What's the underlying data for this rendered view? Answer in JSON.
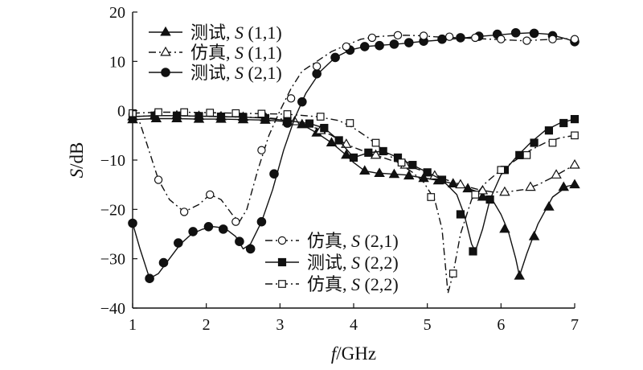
{
  "chart_data": {
    "type": "line",
    "title": "",
    "xlabel_italic": "f",
    "xlabel_rest": "/GHz",
    "ylabel_italic": "S",
    "ylabel_rest": "/dB",
    "xlim": [
      1,
      7
    ],
    "ylim": [
      -40,
      20
    ],
    "x_ticks": [
      1,
      2,
      3,
      4,
      5,
      6,
      7
    ],
    "y_ticks": [
      20,
      10,
      0,
      -10,
      -20,
      -30,
      -40
    ],
    "grid": false,
    "legend_groups": [
      {
        "placement": "top-left",
        "series": [
          0,
          1,
          2
        ]
      },
      {
        "placement": "bottom-center",
        "series": [
          3,
          4,
          5
        ]
      }
    ],
    "series": [
      {
        "name": "测试, S (1,1)",
        "name_prefix": "测试, ",
        "name_italic": "S",
        "name_suffix": " (1,1)",
        "line": "solid",
        "marker": "triangle-filled",
        "x": [
          1.0,
          1.3,
          1.6,
          1.9,
          2.2,
          2.5,
          2.8,
          3.1,
          3.3,
          3.5,
          3.7,
          3.9,
          4.0,
          4.15,
          4.3,
          4.5,
          4.7,
          4.9,
          5.1,
          5.3,
          5.5,
          5.7,
          5.9,
          6.0,
          6.1,
          6.2,
          6.25,
          6.35,
          6.5,
          6.7,
          6.9,
          7.0
        ],
        "y": [
          -1.8,
          -1.6,
          -1.6,
          -1.7,
          -1.7,
          -1.8,
          -1.9,
          -2.2,
          -2.8,
          -4.5,
          -6.5,
          -9.0,
          -10.5,
          -12.2,
          -12.6,
          -12.8,
          -13.0,
          -13.5,
          -14.0,
          -14.6,
          -15.5,
          -16.5,
          -18.5,
          -21.0,
          -24.5,
          -30.0,
          -33.5,
          -29.0,
          -23.0,
          -17.5,
          -15.3,
          -15.0
        ],
        "marker_x": [
          1.0,
          1.32,
          1.6,
          1.9,
          2.2,
          2.5,
          2.8,
          3.1,
          3.3,
          3.5,
          3.7,
          3.9,
          4.15,
          4.35,
          4.55,
          4.75,
          4.95,
          5.15,
          5.35,
          5.55,
          5.75,
          6.05,
          6.25,
          6.45,
          6.65,
          6.85,
          7.0
        ],
        "marker_y": [
          -1.8,
          -1.6,
          -1.6,
          -1.7,
          -1.7,
          -1.8,
          -1.9,
          -2.2,
          -2.8,
          -4.5,
          -6.5,
          -9.0,
          -12.2,
          -12.7,
          -12.9,
          -13.2,
          -13.7,
          -14.2,
          -14.8,
          -15.8,
          -17.5,
          -24.0,
          -33.5,
          -25.5,
          -19.5,
          -15.5,
          -15.0
        ]
      },
      {
        "name": "仿真, S (1,1)",
        "name_prefix": "仿真, ",
        "name_italic": "S",
        "name_suffix": " (1,1)",
        "line": "dashdot",
        "marker": "triangle-open",
        "x": [
          1.0,
          1.3,
          1.6,
          1.9,
          2.2,
          2.5,
          2.8,
          3.1,
          3.3,
          3.5,
          3.7,
          3.9,
          4.1,
          4.3,
          4.5,
          4.7,
          4.9,
          5.1,
          5.3,
          5.5,
          5.7,
          5.9,
          6.1,
          6.3,
          6.5,
          6.7,
          6.9,
          7.0
        ],
        "y": [
          -1.2,
          -1.0,
          -1.0,
          -1.1,
          -1.2,
          -1.3,
          -1.4,
          -1.8,
          -2.6,
          -3.6,
          -5.0,
          -6.8,
          -8.0,
          -9.0,
          -10.0,
          -11.0,
          -12.0,
          -13.2,
          -14.2,
          -15.2,
          -16.0,
          -16.5,
          -16.4,
          -16.0,
          -15.0,
          -13.5,
          -11.8,
          -11.0
        ],
        "marker_x": [
          1.0,
          1.3,
          1.6,
          1.9,
          2.2,
          2.5,
          2.8,
          3.2,
          3.55,
          3.9,
          4.3,
          4.7,
          5.1,
          5.45,
          5.75,
          6.05,
          6.4,
          6.75,
          7.0
        ],
        "marker_y": [
          -1.2,
          -1.0,
          -1.0,
          -1.1,
          -1.2,
          -1.3,
          -1.4,
          -2.2,
          -4.0,
          -6.8,
          -9.0,
          -11.0,
          -13.2,
          -15.0,
          -16.2,
          -16.5,
          -15.5,
          -13.0,
          -11.0
        ]
      },
      {
        "name": "测试, S (2,1)",
        "name_prefix": "测试, ",
        "name_italic": "S",
        "name_suffix": " (2,1)",
        "line": "solid",
        "marker": "circle-filled",
        "x": [
          1.0,
          1.1,
          1.23,
          1.35,
          1.5,
          1.65,
          1.8,
          1.95,
          2.1,
          2.25,
          2.4,
          2.5,
          2.6,
          2.75,
          2.9,
          3.05,
          3.2,
          3.35,
          3.55,
          3.75,
          3.95,
          4.15,
          4.4,
          4.65,
          4.9,
          5.15,
          5.4,
          5.65,
          5.9,
          6.15,
          6.4,
          6.65,
          6.9,
          7.0
        ],
        "y": [
          -22.8,
          -28.0,
          -34.0,
          -33.0,
          -30.0,
          -27.0,
          -25.0,
          -24.0,
          -23.5,
          -23.8,
          -25.5,
          -28.0,
          -27.0,
          -22.5,
          -16.0,
          -8.0,
          -1.5,
          3.5,
          8.0,
          10.8,
          12.3,
          13.0,
          13.3,
          13.6,
          14.0,
          14.3,
          14.6,
          15.0,
          15.3,
          15.6,
          15.8,
          15.5,
          14.5,
          14.0
        ],
        "marker_x": [
          1.0,
          1.23,
          1.42,
          1.62,
          1.82,
          2.03,
          2.23,
          2.45,
          2.6,
          2.75,
          2.92,
          3.1,
          3.3,
          3.5,
          3.75,
          3.95,
          4.15,
          4.35,
          4.55,
          4.75,
          4.95,
          5.2,
          5.45,
          5.7,
          5.95,
          6.2,
          6.45,
          6.7,
          7.0
        ],
        "marker_y": [
          -22.8,
          -34.0,
          -30.8,
          -26.8,
          -24.5,
          -23.5,
          -24.0,
          -26.5,
          -28.0,
          -22.5,
          -12.8,
          -2.5,
          1.8,
          7.5,
          10.8,
          12.3,
          13.0,
          13.2,
          13.5,
          13.8,
          14.1,
          14.5,
          14.8,
          15.1,
          15.5,
          15.8,
          15.7,
          15.2,
          14.0
        ]
      },
      {
        "name": "仿真, S (2,1)",
        "name_prefix": "仿真, ",
        "name_italic": "S",
        "name_suffix": " (2,1)",
        "line": "dashdot",
        "marker": "circle-open",
        "x": [
          1.0,
          1.1,
          1.2,
          1.35,
          1.5,
          1.7,
          1.9,
          2.05,
          2.2,
          2.35,
          2.45,
          2.55,
          2.7,
          2.85,
          3.0,
          3.15,
          3.3,
          3.5,
          3.7,
          3.9,
          4.1,
          4.3,
          4.5,
          4.7,
          4.9,
          5.1,
          5.4,
          5.7,
          6.0,
          6.3,
          6.6,
          6.9,
          7.0
        ],
        "y": [
          -0.8,
          -2.5,
          -7.0,
          -14.0,
          -18.0,
          -20.5,
          -19.0,
          -17.0,
          -18.0,
          -21.0,
          -22.5,
          -20.0,
          -12.0,
          -5.0,
          0.0,
          4.5,
          8.0,
          10.0,
          12.0,
          13.3,
          14.5,
          15.0,
          15.2,
          15.3,
          15.2,
          15.0,
          14.8,
          14.6,
          14.4,
          14.2,
          14.4,
          14.6,
          14.5
        ],
        "marker_x": [
          1.0,
          1.35,
          1.7,
          2.05,
          2.4,
          2.75,
          3.15,
          3.5,
          3.9,
          4.25,
          4.6,
          4.95,
          5.3,
          5.65,
          6.0,
          6.35,
          6.7,
          7.0
        ],
        "marker_y": [
          -0.8,
          -14.0,
          -20.5,
          -17.0,
          -22.5,
          -8.0,
          2.5,
          9.0,
          13.0,
          14.8,
          15.3,
          15.2,
          15.0,
          14.8,
          14.5,
          14.2,
          14.5,
          14.5
        ]
      },
      {
        "name": "测试, S (2,2)",
        "name_prefix": "测试, ",
        "name_italic": "S",
        "name_suffix": " (2,2)",
        "line": "solid",
        "marker": "square-filled",
        "x": [
          1.0,
          1.3,
          1.6,
          1.9,
          2.2,
          2.5,
          2.8,
          3.1,
          3.4,
          3.6,
          3.8,
          4.0,
          4.2,
          4.4,
          4.6,
          4.8,
          5.0,
          5.2,
          5.4,
          5.5,
          5.6,
          5.65,
          5.75,
          5.85,
          6.0,
          6.2,
          6.4,
          6.6,
          6.8,
          7.0
        ],
        "y": [
          -1.2,
          -1.0,
          -1.0,
          -1.1,
          -1.2,
          -1.3,
          -1.5,
          -2.0,
          -2.6,
          -3.5,
          -6.0,
          -9.5,
          -8.5,
          -8.2,
          -9.5,
          -11.0,
          -12.5,
          -14.0,
          -17.0,
          -21.0,
          -27.0,
          -28.5,
          -24.0,
          -18.0,
          -13.0,
          -9.5,
          -6.5,
          -4.0,
          -2.5,
          -1.7
        ],
        "marker_x": [
          1.0,
          1.3,
          1.6,
          1.9,
          2.2,
          2.5,
          2.8,
          3.1,
          3.4,
          3.6,
          3.8,
          4.0,
          4.2,
          4.4,
          4.6,
          4.8,
          5.0,
          5.2,
          5.45,
          5.62,
          5.85,
          6.05,
          6.25,
          6.45,
          6.65,
          6.85,
          7.0
        ],
        "marker_y": [
          -1.2,
          -1.0,
          -1.0,
          -1.1,
          -1.2,
          -1.3,
          -1.5,
          -2.0,
          -2.6,
          -3.5,
          -6.0,
          -9.5,
          -8.5,
          -8.2,
          -9.5,
          -11.0,
          -12.5,
          -14.0,
          -21.0,
          -28.5,
          -18.0,
          -12.0,
          -9.0,
          -6.5,
          -4.0,
          -2.5,
          -1.7
        ]
      },
      {
        "name": "仿真, S (2,2)",
        "name_prefix": "仿真, ",
        "name_italic": "S",
        "name_suffix": " (2,2)",
        "line": "dashdot",
        "marker": "square-open",
        "x": [
          1.0,
          1.35,
          1.7,
          2.05,
          2.4,
          2.75,
          3.1,
          3.5,
          3.8,
          4.0,
          4.2,
          4.4,
          4.6,
          4.8,
          4.95,
          5.1,
          5.2,
          5.28,
          5.35,
          5.45,
          5.6,
          5.8,
          6.0,
          6.2,
          6.4,
          6.6,
          6.8,
          7.0
        ],
        "y": [
          -0.5,
          -0.3,
          -0.3,
          -0.4,
          -0.5,
          -0.6,
          -0.7,
          -1.2,
          -2.0,
          -3.5,
          -5.5,
          -8.0,
          -10.5,
          -12.5,
          -14.5,
          -18.0,
          -24.0,
          -37.0,
          -33.0,
          -25.0,
          -18.0,
          -14.5,
          -12.0,
          -10.0,
          -8.0,
          -6.5,
          -5.5,
          -5.0
        ],
        "marker_x": [
          1.0,
          1.35,
          1.7,
          2.05,
          2.4,
          2.75,
          3.1,
          3.55,
          3.95,
          4.3,
          4.65,
          5.05,
          5.35,
          5.65,
          6.0,
          6.35,
          6.7,
          7.0
        ],
        "marker_y": [
          -0.5,
          -0.3,
          -0.3,
          -0.4,
          -0.5,
          -0.6,
          -0.7,
          -1.2,
          -2.5,
          -6.5,
          -10.5,
          -17.5,
          -33.0,
          -17.0,
          -12.0,
          -9.0,
          -6.5,
          -5.0
        ]
      }
    ]
  }
}
